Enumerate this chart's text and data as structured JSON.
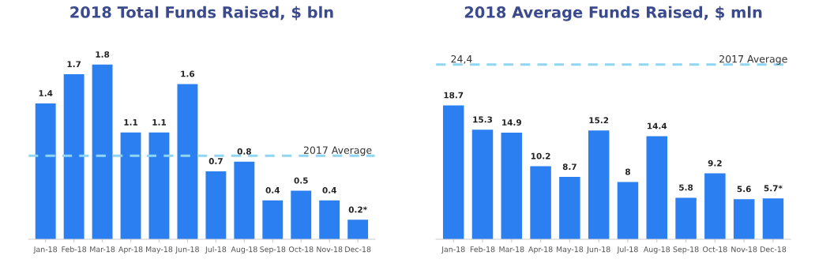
{
  "chart_data": [
    {
      "type": "bar",
      "title": "2018 Total Funds Raised, $ bln",
      "categories": [
        "Jan-18",
        "Feb-18",
        "Mar-18",
        "Apr-18",
        "May-18",
        "Jun-18",
        "Jul-18",
        "Aug-18",
        "Sep-18",
        "Oct-18",
        "Nov-18",
        "Dec-18"
      ],
      "values": [
        1.4,
        1.7,
        1.8,
        1.1,
        1.1,
        1.6,
        0.7,
        0.8,
        0.4,
        0.5,
        0.4,
        0.2
      ],
      "value_labels": [
        "1.4",
        "1.7",
        "1.8",
        "1.1",
        "1.1",
        "1.6",
        "0.7",
        "0.8",
        "0.4",
        "0.5",
        "0.4",
        "0.2*"
      ],
      "color": "#2b7ff0",
      "tick_labels": "x",
      "grid": false,
      "legend": false,
      "ref_lines": [
        {
          "axis": "y",
          "value": 0.86,
          "label": "2017 Average",
          "color": "#8fd6f2",
          "line_style": "dashed"
        }
      ]
    },
    {
      "type": "bar",
      "title": "2018 Average Funds Raised, $ mln",
      "categories": [
        "Jan-18",
        "Feb-18",
        "Mar-18",
        "Apr-18",
        "May-18",
        "Jun-18",
        "Jul-18",
        "Aug-18",
        "Sep-18",
        "Oct-18",
        "Nov-18",
        "Dec-18"
      ],
      "values": [
        18.7,
        15.3,
        14.9,
        10.2,
        8.7,
        15.2,
        8,
        14.4,
        5.8,
        9.2,
        5.6,
        5.7
      ],
      "value_labels": [
        "18.7",
        "15.3",
        "14.9",
        "10.2",
        "8.7",
        "15.2",
        "8",
        "14.4",
        "5.8",
        "9.2",
        "5.6",
        "5.7*"
      ],
      "color": "#2b7ff0",
      "tick_labels": "x",
      "grid": false,
      "legend": false,
      "ref_lines": [
        {
          "axis": "y",
          "value": 24.4,
          "label": "2017 Average",
          "color": "#8fd6f2",
          "line_style": "dashed"
        }
      ],
      "annotations": [
        {
          "text": "24,4",
          "x": "Jan-18",
          "y": 24.4
        }
      ]
    }
  ]
}
